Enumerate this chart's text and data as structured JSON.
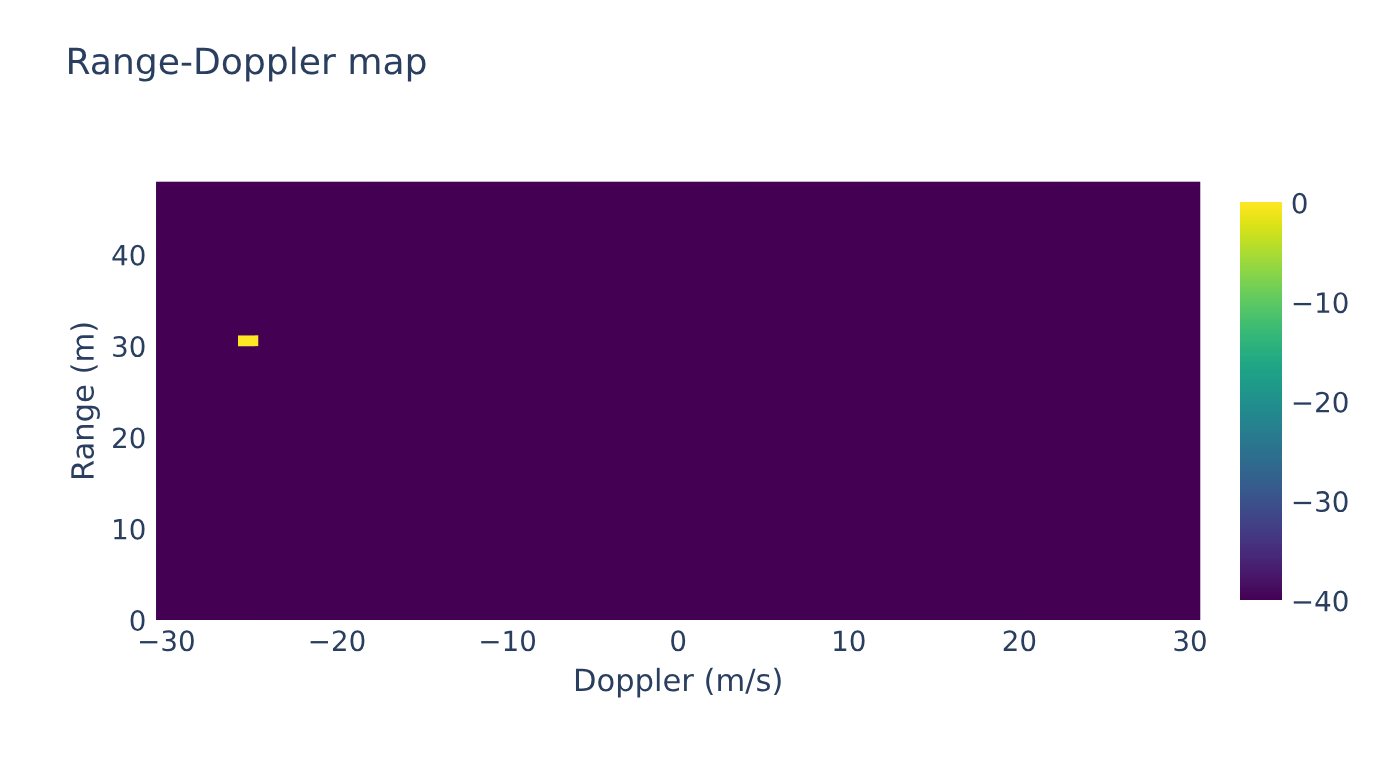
{
  "chart_data": {
    "type": "heatmap",
    "title": "Range-Doppler map",
    "xlabel": "Doppler (m/s)",
    "ylabel": "Range (m)",
    "x": [
      -30.0,
      -28.8,
      -27.6,
      -26.4,
      -25.2,
      -24.0,
      -22.8,
      -21.6,
      -20.4,
      -19.2,
      -18.0,
      -16.8,
      -15.6,
      -14.4,
      -13.2,
      -12.0,
      -10.8,
      -9.6,
      -8.4,
      -7.2,
      -6.0,
      -4.8,
      -3.6,
      -2.4,
      -1.2,
      0.0,
      1.2,
      2.4,
      3.6,
      4.8,
      6.0,
      7.2,
      8.4,
      9.6,
      10.8,
      12.0,
      13.2,
      14.4,
      15.6,
      16.8,
      18.0,
      19.2,
      20.4,
      21.6,
      22.8,
      24.0,
      25.2,
      26.4,
      27.6,
      28.8,
      30.0
    ],
    "y": [
      0.6,
      1.8,
      3.0,
      4.2,
      5.4,
      6.6,
      7.8,
      9.0,
      10.2,
      11.4,
      12.6,
      13.8,
      15.0,
      16.2,
      17.4,
      18.6,
      19.8,
      21.0,
      22.2,
      23.4,
      24.6,
      25.8,
      27.0,
      28.2,
      29.4,
      30.6,
      31.8,
      33.0,
      34.2,
      35.4,
      36.6,
      37.8,
      39.0,
      40.2,
      41.4,
      42.6,
      43.8,
      45.0,
      46.2,
      47.4
    ],
    "cells": [
      [
        -40,
        -40,
        -40,
        -40,
        -40,
        -40,
        -40,
        -40,
        -40,
        -40,
        -40,
        -40,
        -40,
        -40,
        -40,
        -40,
        -40,
        -40,
        -40,
        -40,
        -40,
        -40,
        -40,
        -40,
        -40,
        -40,
        -40,
        -40,
        -40,
        -40,
        -40,
        -40,
        -40,
        -40,
        -40,
        -40,
        -40,
        -40,
        -40,
        -40,
        -40,
        -40,
        -40,
        -40,
        -40,
        -40,
        -40,
        -40,
        -40,
        -40,
        -40
      ],
      [
        -40,
        -40,
        -40,
        -40,
        -40,
        -40,
        -40,
        -40,
        -40,
        -40,
        -40,
        -40,
        -40,
        -40,
        -40,
        -40,
        -40,
        -40,
        -40,
        -40,
        -40,
        -40,
        -40,
        -40,
        -40,
        -40,
        -40,
        -40,
        -40,
        -40,
        -40,
        -40,
        -40,
        -40,
        -40,
        -40,
        -40,
        -40,
        -40,
        -40,
        -40,
        -40,
        -40,
        -40,
        -40,
        -40,
        -40,
        -40,
        -40,
        -40,
        -40
      ],
      [
        -40,
        -40,
        -40,
        -40,
        -40,
        -40,
        -40,
        -40,
        -40,
        -40,
        -40,
        -40,
        -40,
        -40,
        -40,
        -40,
        -40,
        -40,
        -40,
        -40,
        -40,
        -40,
        -40,
        -40,
        -40,
        -40,
        -40,
        -40,
        -40,
        -40,
        -40,
        -40,
        -40,
        -40,
        -40,
        -40,
        -40,
        -40,
        -40,
        -40,
        -40,
        -40,
        -40,
        -40,
        -40,
        -40,
        -40,
        -40,
        -40,
        -40,
        -40
      ],
      [
        -40,
        -40,
        -40,
        -40,
        -40,
        -40,
        -40,
        -40,
        -40,
        -40,
        -40,
        -40,
        -40,
        -40,
        -40,
        -40,
        -40,
        -40,
        -40,
        -40,
        -40,
        -40,
        -40,
        -40,
        -40,
        -40,
        -40,
        -40,
        -40,
        -40,
        -40,
        -40,
        -40,
        -40,
        -40,
        -40,
        -40,
        -40,
        -40,
        -40,
        -40,
        -40,
        -40,
        -40,
        -40,
        -40,
        -40,
        -40,
        -40,
        -40,
        -40
      ],
      [
        -40,
        -40,
        -40,
        -40,
        -40,
        -40,
        -40,
        -40,
        -40,
        -40,
        -40,
        -40,
        -40,
        -40,
        -40,
        -40,
        -40,
        -40,
        -40,
        -40,
        -40,
        -40,
        -40,
        -40,
        -40,
        -40,
        -40,
        -40,
        -40,
        -40,
        -40,
        -40,
        -40,
        -40,
        -40,
        -40,
        -40,
        -40,
        -40,
        -40,
        -40,
        -40,
        -40,
        -40,
        -40,
        -40,
        -40,
        -40,
        -40,
        -40,
        -40
      ],
      [
        -40,
        -40,
        -40,
        -40,
        -40,
        -40,
        -40,
        -40,
        -40,
        -40,
        -40,
        -40,
        -40,
        -40,
        -40,
        -40,
        -40,
        -40,
        -40,
        -40,
        -40,
        -40,
        -40,
        -40,
        -40,
        -40,
        -40,
        -40,
        -40,
        -40,
        -40,
        -40,
        -40,
        -40,
        -40,
        -40,
        -40,
        -40,
        -40,
        -40,
        -40,
        -40,
        -40,
        -40,
        -40,
        -40,
        -40,
        -40,
        -40,
        -40,
        -40
      ],
      [
        -40,
        -40,
        -40,
        -40,
        -40,
        -40,
        -40,
        -40,
        -40,
        -40,
        -40,
        -40,
        -40,
        -40,
        -40,
        -40,
        -40,
        -40,
        -40,
        -40,
        -40,
        -40,
        -40,
        -40,
        -40,
        -40,
        -40,
        -40,
        -40,
        -40,
        -40,
        -40,
        -40,
        -40,
        -40,
        -40,
        -40,
        -40,
        -40,
        -40,
        -40,
        -40,
        -40,
        -40,
        -40,
        -40,
        -40,
        -40,
        -40,
        -40,
        -40
      ],
      [
        -40,
        -40,
        -40,
        -40,
        -40,
        -40,
        -40,
        -40,
        -40,
        -40,
        -40,
        -40,
        -40,
        -40,
        -40,
        -40,
        -40,
        -40,
        -40,
        -40,
        -40,
        -40,
        -40,
        -40,
        -40,
        -40,
        -40,
        -40,
        -40,
        -40,
        -40,
        -40,
        -40,
        -40,
        -40,
        -40,
        -40,
        -40,
        -40,
        -40,
        -40,
        -40,
        -40,
        -40,
        -40,
        -40,
        -40,
        -40,
        -40,
        -40,
        -40
      ],
      [
        -40,
        -40,
        -40,
        -40,
        -40,
        -40,
        -40,
        -40,
        -40,
        -40,
        -40,
        -40,
        -40,
        -40,
        -40,
        -40,
        -40,
        -40,
        -40,
        -40,
        -40,
        -40,
        -40,
        -40,
        -40,
        -40,
        -40,
        -40,
        -40,
        -40,
        -40,
        -40,
        -40,
        -40,
        -40,
        -40,
        -40,
        -40,
        -40,
        -40,
        -40,
        -40,
        -40,
        -40,
        -40,
        -40,
        -40,
        -40,
        -40,
        -40,
        -40
      ],
      [
        -40,
        -40,
        -40,
        -40,
        -40,
        -40,
        -40,
        -40,
        -40,
        -40,
        -40,
        -40,
        -40,
        -40,
        -40,
        -40,
        -40,
        -40,
        -40,
        -40,
        -40,
        -40,
        -40,
        -40,
        -40,
        -40,
        -40,
        -40,
        -40,
        -40,
        -40,
        -40,
        -40,
        -40,
        -40,
        -40,
        -40,
        -40,
        -40,
        -40,
        -40,
        -40,
        -40,
        -40,
        -40,
        -40,
        -40,
        -40,
        -40,
        -40,
        -40
      ],
      [
        -40,
        -40,
        -40,
        -40,
        -40,
        -40,
        -40,
        -40,
        -40,
        -40,
        -40,
        -40,
        -40,
        -40,
        -40,
        -40,
        -40,
        -40,
        -40,
        -40,
        -40,
        -40,
        -40,
        -40,
        -40,
        -40,
        -40,
        -40,
        -40,
        -40,
        -40,
        -40,
        -40,
        -40,
        -40,
        -40,
        -40,
        -40,
        -40,
        -40,
        -40,
        -40,
        -40,
        -40,
        -40,
        -40,
        -40,
        -40,
        -40,
        -40,
        -40
      ],
      [
        -40,
        -40,
        -40,
        -40,
        -40,
        -40,
        -40,
        -40,
        -40,
        -40,
        -40,
        -40,
        -40,
        -40,
        -40,
        -40,
        -40,
        -40,
        -40,
        -40,
        -40,
        -40,
        -40,
        -40,
        -40,
        -40,
        -40,
        -40,
        -40,
        -40,
        -40,
        -40,
        -40,
        -40,
        -40,
        -40,
        -40,
        -40,
        -40,
        -40,
        -40,
        -40,
        -40,
        -40,
        -40,
        -40,
        -40,
        -40,
        -40,
        -40,
        -40
      ],
      [
        -40,
        -40,
        -40,
        -40,
        -40,
        -40,
        -40,
        -40,
        -40,
        -40,
        -40,
        -40,
        -40,
        -40,
        -40,
        -40,
        -40,
        -40,
        -40,
        -40,
        -40,
        -40,
        -40,
        -40,
        -40,
        -40,
        -40,
        -40,
        -40,
        -40,
        -40,
        -40,
        -40,
        -40,
        -40,
        -40,
        -40,
        -40,
        -40,
        -40,
        -40,
        -40,
        -40,
        -40,
        -40,
        -40,
        -40,
        -40,
        -40,
        -40,
        -40
      ],
      [
        -40,
        -40,
        -40,
        -40,
        -40,
        -40,
        -40,
        -40,
        -40,
        -40,
        -40,
        -40,
        -40,
        -40,
        -40,
        -40,
        -40,
        -40,
        -40,
        -40,
        -40,
        -40,
        -40,
        -40,
        -40,
        -40,
        -40,
        -40,
        -40,
        -40,
        -40,
        -40,
        -40,
        -40,
        -40,
        -40,
        -40,
        -40,
        -40,
        -40,
        -40,
        -40,
        -40,
        -40,
        -40,
        -40,
        -40,
        -40,
        -40,
        -40,
        -40
      ],
      [
        -40,
        -40,
        -40,
        -40,
        -40,
        -40,
        -40,
        -40,
        -40,
        -40,
        -40,
        -40,
        -40,
        -40,
        -40,
        -40,
        -40,
        -40,
        -40,
        -40,
        -40,
        -40,
        -40,
        -40,
        -40,
        -40,
        -40,
        -40,
        -40,
        -40,
        -40,
        -40,
        -40,
        -40,
        -40,
        -40,
        -40,
        -40,
        -40,
        -40,
        -40,
        -40,
        -40,
        -40,
        -40,
        -40,
        -40,
        -40,
        -40,
        -40,
        -40
      ],
      [
        -40,
        -40,
        -40,
        -40,
        -40,
        -40,
        -40,
        -40,
        -40,
        -40,
        -40,
        -40,
        -40,
        -40,
        -40,
        -40,
        -40,
        -40,
        -40,
        -40,
        -40,
        -40,
        -40,
        -40,
        -40,
        -40,
        -40,
        -40,
        -40,
        -40,
        -40,
        -40,
        -40,
        -40,
        -40,
        -40,
        -40,
        -40,
        -40,
        -40,
        -40,
        -40,
        -40,
        -40,
        -40,
        -40,
        -40,
        -40,
        -40,
        -40,
        -40
      ],
      [
        -40,
        -40,
        -40,
        -40,
        -40,
        -40,
        -40,
        -40,
        -40,
        -40,
        -40,
        -40,
        -40,
        -40,
        -40,
        -40,
        -40,
        -40,
        -40,
        -40,
        -40,
        -40,
        -40,
        -40,
        -40,
        -40,
        -40,
        -40,
        -40,
        -40,
        -40,
        -40,
        -40,
        -40,
        -40,
        -40,
        -40,
        -40,
        -40,
        -40,
        -40,
        -40,
        -40,
        -40,
        -40,
        -40,
        -40,
        -40,
        -40,
        -40,
        -40
      ],
      [
        -40,
        -40,
        -40,
        -40,
        -40,
        -40,
        -40,
        -40,
        -40,
        -40,
        -40,
        -40,
        -40,
        -40,
        -40,
        -40,
        -40,
        -40,
        -40,
        -40,
        -40,
        -40,
        -40,
        -40,
        -40,
        -40,
        -40,
        -40,
        -40,
        -40,
        -40,
        -40,
        -40,
        -40,
        -40,
        -40,
        -40,
        -40,
        -40,
        -40,
        -40,
        -40,
        -40,
        -40,
        -40,
        -40,
        -40,
        -40,
        -40,
        -40,
        -40
      ],
      [
        -40,
        -40,
        -40,
        -40,
        -40,
        -40,
        -40,
        -40,
        -40,
        -40,
        -40,
        -40,
        -40,
        -40,
        -40,
        -40,
        -40,
        -40,
        -40,
        -40,
        -40,
        -40,
        -40,
        -40,
        -40,
        -40,
        -40,
        -40,
        -40,
        -40,
        -40,
        -40,
        -40,
        -40,
        -40,
        -40,
        -40,
        -40,
        -40,
        -40,
        -40,
        -40,
        -40,
        -40,
        -40,
        -40,
        -40,
        -40,
        -40,
        -40,
        -40
      ],
      [
        -40,
        -40,
        -40,
        -40,
        -40,
        -40,
        -40,
        -40,
        -40,
        -40,
        -40,
        -40,
        -40,
        -40,
        -40,
        -40,
        -40,
        -40,
        -40,
        -40,
        -40,
        -40,
        -40,
        -40,
        -40,
        -40,
        -40,
        -40,
        -40,
        -40,
        -40,
        -40,
        -40,
        -40,
        -40,
        -40,
        -40,
        -40,
        -40,
        -40,
        -40,
        -40,
        -40,
        -40,
        -40,
        -40,
        -40,
        -40,
        -40,
        -40,
        -40
      ],
      [
        -40,
        -40,
        -40,
        -40,
        -40,
        -40,
        -40,
        -40,
        -40,
        -40,
        -40,
        -40,
        -40,
        -40,
        -40,
        -40,
        -40,
        -40,
        -40,
        -40,
        -40,
        -40,
        -40,
        -40,
        -40,
        -40,
        -40,
        -40,
        -40,
        -40,
        -40,
        -40,
        -40,
        -40,
        -40,
        -40,
        -40,
        -40,
        -40,
        -40,
        -40,
        -40,
        -40,
        -40,
        -40,
        -40,
        -40,
        -40,
        -40,
        -40,
        -40
      ],
      [
        -40,
        -40,
        -40,
        -40,
        -40,
        -40,
        -40,
        -40,
        -40,
        -40,
        -40,
        -40,
        -40,
        -40,
        -40,
        -40,
        -40,
        -40,
        -40,
        -40,
        -40,
        -40,
        -40,
        -40,
        -40,
        -40,
        -40,
        -40,
        -40,
        -40,
        -40,
        -40,
        -40,
        -40,
        -40,
        -40,
        -40,
        -40,
        -40,
        -40,
        -40,
        -40,
        -40,
        -40,
        -40,
        -40,
        -40,
        -40,
        -40,
        -40,
        -40
      ],
      [
        -40,
        -40,
        -40,
        -40,
        -40,
        -40,
        -40,
        -40,
        -40,
        -40,
        -40,
        -40,
        -40,
        -40,
        -40,
        -40,
        -40,
        -40,
        -40,
        -40,
        -40,
        -40,
        -40,
        -40,
        -40,
        -40,
        -40,
        -40,
        -40,
        -40,
        -40,
        -40,
        -40,
        -40,
        -40,
        -40,
        -40,
        -40,
        -40,
        -40,
        -40,
        -40,
        -40,
        -40,
        -40,
        -40,
        -40,
        -40,
        -40,
        -40,
        -40
      ],
      [
        -40,
        -40,
        -40,
        -40,
        -40,
        -40,
        -40,
        -40,
        -40,
        -40,
        -40,
        -40,
        -40,
        -40,
        -40,
        -40,
        -40,
        -40,
        -40,
        -40,
        -40,
        -40,
        -40,
        -40,
        -40,
        -40,
        -40,
        -40,
        -40,
        -40,
        -40,
        -40,
        -40,
        -40,
        -40,
        -40,
        -40,
        -40,
        -40,
        -40,
        -40,
        -40,
        -40,
        -40,
        -40,
        -40,
        -40,
        -40,
        -40,
        -40,
        -40
      ],
      [
        -40,
        -40,
        -40,
        -40,
        -40,
        -40,
        -40,
        -40,
        -40,
        -40,
        -40,
        -40,
        -40,
        -40,
        -40,
        -40,
        -40,
        -40,
        -40,
        -40,
        -40,
        -40,
        -40,
        -40,
        -40,
        -40,
        -40,
        -40,
        -40,
        -40,
        -40,
        -40,
        -40,
        -40,
        -40,
        -40,
        -40,
        -40,
        -40,
        -40,
        -40,
        -40,
        -40,
        -40,
        -40,
        -40,
        -40,
        -40,
        -40,
        -40,
        -40
      ],
      [
        -40,
        -40,
        -40,
        -40,
        0,
        -40,
        -40,
        -40,
        -40,
        -40,
        -40,
        -40,
        -40,
        -40,
        -40,
        -40,
        -40,
        -40,
        -40,
        -40,
        -40,
        -40,
        -40,
        -40,
        -40,
        -40,
        -40,
        -40,
        -40,
        -40,
        -40,
        -40,
        -40,
        -40,
        -40,
        -40,
        -40,
        -40,
        -40,
        -40,
        -40,
        -40,
        -40,
        -40,
        -40,
        -40,
        -40,
        -40,
        -40,
        -40,
        -40
      ],
      [
        -40,
        -40,
        -40,
        -40,
        -40,
        -40,
        -40,
        -40,
        -40,
        -40,
        -40,
        -40,
        -40,
        -40,
        -40,
        -40,
        -40,
        -40,
        -40,
        -40,
        -40,
        -40,
        -40,
        -40,
        -40,
        -40,
        -40,
        -40,
        -40,
        -40,
        -40,
        -40,
        -40,
        -40,
        -40,
        -40,
        -40,
        -40,
        -40,
        -40,
        -40,
        -40,
        -40,
        -40,
        -40,
        -40,
        -40,
        -40,
        -40,
        -40,
        -40
      ],
      [
        -40,
        -40,
        -40,
        -40,
        -40,
        -40,
        -40,
        -40,
        -40,
        -40,
        -40,
        -40,
        -40,
        -40,
        -40,
        -40,
        -40,
        -40,
        -40,
        -40,
        -40,
        -40,
        -40,
        -40,
        -40,
        -40,
        -40,
        -40,
        -40,
        -40,
        -40,
        -40,
        -40,
        -40,
        -40,
        -40,
        -40,
        -40,
        -40,
        -40,
        -40,
        -40,
        -40,
        -40,
        -40,
        -40,
        -40,
        -40,
        -40,
        -40,
        -40
      ],
      [
        -40,
        -40,
        -40,
        -40,
        -40,
        -40,
        -40,
        -40,
        -40,
        -40,
        -40,
        -40,
        -40,
        -40,
        -40,
        -40,
        -40,
        -40,
        -40,
        -40,
        -40,
        -40,
        -40,
        -40,
        -40,
        -40,
        -40,
        -40,
        -40,
        -40,
        -40,
        -40,
        -40,
        -40,
        -40,
        -40,
        -40,
        -40,
        -40,
        -40,
        -40,
        -40,
        -40,
        -40,
        -40,
        -40,
        -40,
        -40,
        -40,
        -40,
        -40
      ],
      [
        -40,
        -40,
        -40,
        -40,
        -40,
        -40,
        -40,
        -40,
        -40,
        -40,
        -40,
        -40,
        -40,
        -40,
        -40,
        -40,
        -40,
        -40,
        -40,
        -40,
        -40,
        -40,
        -40,
        -40,
        -40,
        -40,
        -40,
        -40,
        -40,
        -40,
        -40,
        -40,
        -40,
        -40,
        -40,
        -40,
        -40,
        -40,
        -40,
        -40,
        -40,
        -40,
        -40,
        -40,
        -40,
        -40,
        -40,
        -40,
        -40,
        -40,
        -40
      ],
      [
        -40,
        -40,
        -40,
        -40,
        -40,
        -40,
        -40,
        -40,
        -40,
        -40,
        -40,
        -40,
        -40,
        -40,
        -40,
        -40,
        -40,
        -40,
        -40,
        -40,
        -40,
        -40,
        -40,
        -40,
        -40,
        -40,
        -40,
        -40,
        -40,
        -40,
        -40,
        -40,
        -40,
        -40,
        -40,
        -40,
        -40,
        -40,
        -40,
        -40,
        -40,
        -40,
        -40,
        -40,
        -40,
        -40,
        -40,
        -40,
        -40,
        -40,
        -40
      ],
      [
        -40,
        -40,
        -40,
        -40,
        -40,
        -40,
        -40,
        -40,
        -40,
        -40,
        -40,
        -40,
        -40,
        -40,
        -40,
        -40,
        -40,
        -40,
        -40,
        -40,
        -40,
        -40,
        -40,
        -40,
        -40,
        -40,
        -40,
        -40,
        -40,
        -40,
        -40,
        -40,
        -40,
        -40,
        -40,
        -40,
        -40,
        -40,
        -40,
        -40,
        -40,
        -40,
        -40,
        -40,
        -40,
        -40,
        -40,
        -40,
        -40,
        -40,
        -40
      ],
      [
        -40,
        -40,
        -40,
        -40,
        -40,
        -40,
        -40,
        -40,
        -40,
        -40,
        -40,
        -40,
        -40,
        -40,
        -40,
        -40,
        -40,
        -40,
        -40,
        -40,
        -40,
        -40,
        -40,
        -40,
        -40,
        -40,
        -40,
        -40,
        -40,
        -40,
        -40,
        -40,
        -40,
        -40,
        -40,
        -40,
        -40,
        -40,
        -40,
        -40,
        -40,
        -40,
        -40,
        -40,
        -40,
        -40,
        -40,
        -40,
        -40,
        -40,
        -40
      ],
      [
        -40,
        -40,
        -40,
        -40,
        -40,
        -40,
        -40,
        -40,
        -40,
        -40,
        -40,
        -40,
        -40,
        -40,
        -40,
        -40,
        -40,
        -40,
        -40,
        -40,
        -40,
        -40,
        -40,
        -40,
        -40,
        -40,
        -40,
        -40,
        -40,
        -40,
        -40,
        -40,
        -40,
        -40,
        -40,
        -40,
        -40,
        -40,
        -40,
        -40,
        -40,
        -40,
        -40,
        -40,
        -40,
        -40,
        -40,
        -40,
        -40,
        -40,
        -40
      ],
      [
        -40,
        -40,
        -40,
        -40,
        -40,
        -40,
        -40,
        -40,
        -40,
        -40,
        -40,
        -40,
        -40,
        -40,
        -40,
        -40,
        -40,
        -40,
        -40,
        -40,
        -40,
        -40,
        -40,
        -40,
        -40,
        -40,
        -40,
        -40,
        -40,
        -40,
        -40,
        -40,
        -40,
        -40,
        -40,
        -40,
        -40,
        -40,
        -40,
        -40,
        -40,
        -40,
        -40,
        -40,
        -40,
        -40,
        -40,
        -40,
        -40,
        -40,
        -40
      ],
      [
        -40,
        -40,
        -40,
        -40,
        -40,
        -40,
        -40,
        -40,
        -40,
        -40,
        -40,
        -40,
        -40,
        -40,
        -40,
        -40,
        -40,
        -40,
        -40,
        -40,
        -40,
        -40,
        -40,
        -40,
        -40,
        -40,
        -40,
        -40,
        -40,
        -40,
        -40,
        -40,
        -40,
        -40,
        -40,
        -40,
        -40,
        -40,
        -40,
        -40,
        -40,
        -40,
        -40,
        -40,
        -40,
        -40,
        -40,
        -40,
        -40,
        -40,
        -40
      ],
      [
        -40,
        -40,
        -40,
        -40,
        -40,
        -40,
        -40,
        -40,
        -40,
        -40,
        -40,
        -40,
        -40,
        -40,
        -40,
        -40,
        -40,
        -40,
        -40,
        -40,
        -40,
        -40,
        -40,
        -40,
        -40,
        -40,
        -40,
        -40,
        -40,
        -40,
        -40,
        -40,
        -40,
        -40,
        -40,
        -40,
        -40,
        -40,
        -40,
        -40,
        -40,
        -40,
        -40,
        -40,
        -40,
        -40,
        -40,
        -40,
        -40,
        -40,
        -40
      ],
      [
        -40,
        -40,
        -40,
        -40,
        -40,
        -40,
        -40,
        -40,
        -40,
        -40,
        -40,
        -40,
        -40,
        -40,
        -40,
        -40,
        -40,
        -40,
        -40,
        -40,
        -40,
        -40,
        -40,
        -40,
        -40,
        -40,
        -40,
        -40,
        -40,
        -40,
        -40,
        -40,
        -40,
        -40,
        -40,
        -40,
        -40,
        -40,
        -40,
        -40,
        -40,
        -40,
        -40,
        -40,
        -40,
        -40,
        -40,
        -40,
        -40,
        -40,
        -40
      ],
      [
        -40,
        -40,
        -40,
        -40,
        -40,
        -40,
        -40,
        -40,
        -40,
        -40,
        -40,
        -40,
        -40,
        -40,
        -40,
        -40,
        -40,
        -40,
        -40,
        -40,
        -40,
        -40,
        -40,
        -40,
        -40,
        -40,
        -40,
        -40,
        -40,
        -40,
        -40,
        -40,
        -40,
        -40,
        -40,
        -40,
        -40,
        -40,
        -40,
        -40,
        -40,
        -40,
        -40,
        -40,
        -40,
        -40,
        -40,
        -40,
        -40,
        -40,
        -40
      ],
      [
        -40,
        -40,
        -40,
        -40,
        -40,
        -40,
        -40,
        -40,
        -40,
        -40,
        -40,
        -40,
        -40,
        -40,
        -40,
        -40,
        -40,
        -40,
        -40,
        -40,
        -40,
        -40,
        -40,
        -40,
        -40,
        -40,
        -40,
        -40,
        -40,
        -40,
        -40,
        -40,
        -40,
        -40,
        -40,
        -40,
        -40,
        -40,
        -40,
        -40,
        -40,
        -40,
        -40,
        -40,
        -40,
        -40,
        -40,
        -40,
        -40,
        -40,
        -40
      ]
    ],
    "xlim": [
      -30.6,
      30.6
    ],
    "ylim": [
      0,
      48
    ],
    "xticks": [
      {
        "value": -30,
        "label": "−30"
      },
      {
        "value": -20,
        "label": "−20"
      },
      {
        "value": -10,
        "label": "−10"
      },
      0,
      10,
      20,
      30
    ],
    "yticks": [
      0,
      10,
      20,
      30,
      40
    ],
    "clim": [
      -40,
      0
    ],
    "cticks": [
      {
        "value": -40,
        "label": "−40"
      },
      {
        "value": -30,
        "label": "−30"
      },
      {
        "value": -20,
        "label": "−20"
      },
      {
        "value": -10,
        "label": "−10"
      },
      0
    ],
    "grid": false
  }
}
